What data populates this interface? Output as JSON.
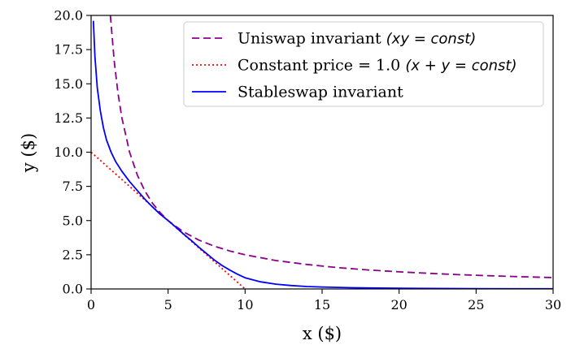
{
  "chart_data": {
    "type": "line",
    "xlabel": "x ($)",
    "ylabel": "y ($)",
    "xlim": [
      0,
      30
    ],
    "ylim": [
      0,
      20
    ],
    "xticks": [
      0,
      5,
      10,
      15,
      20,
      25,
      30
    ],
    "xtick_labels": [
      "0",
      "5",
      "10",
      "15",
      "20",
      "25",
      "30"
    ],
    "yticks": [
      0,
      2.5,
      5,
      7.5,
      10,
      12.5,
      15,
      17.5,
      20
    ],
    "ytick_labels": [
      "0.0",
      "2.5",
      "5.0",
      "7.5",
      "10.0",
      "12.5",
      "15.0",
      "17.5",
      "20.0"
    ],
    "grid": false,
    "legend_position": "top-right",
    "series": [
      {
        "name": "Uniswap invariant",
        "name_math": "(xy = const)",
        "style": "dashed",
        "color": "#8b008b",
        "x": [
          1.25,
          1.5,
          1.75,
          2,
          2.5,
          3,
          3.5,
          4,
          4.5,
          5,
          6,
          7,
          8,
          9,
          10,
          12,
          14,
          16,
          18,
          20,
          22,
          24,
          26,
          28,
          30
        ],
        "y": [
          20,
          16.67,
          14.29,
          12.5,
          10,
          8.33,
          7.14,
          6.25,
          5.56,
          5,
          4.17,
          3.57,
          3.13,
          2.78,
          2.5,
          2.08,
          1.79,
          1.56,
          1.39,
          1.25,
          1.14,
          1.04,
          0.96,
          0.89,
          0.83
        ]
      },
      {
        "name": "Constant price = 1.0",
        "name_math": "(x + y = const)",
        "style": "dotted",
        "color": "#ff0000",
        "x": [
          0,
          10
        ],
        "y": [
          10,
          0
        ]
      },
      {
        "name": "Stableswap invariant",
        "name_math": "",
        "style": "solid",
        "color": "#0000ff",
        "x": [
          0.15,
          0.25,
          0.4,
          0.6,
          0.8,
          1.0,
          1.3,
          1.6,
          2.0,
          2.5,
          3.0,
          3.5,
          4.0,
          4.5,
          5.0,
          5.5,
          6.0,
          6.5,
          7.0,
          7.5,
          8.0,
          8.5,
          9.0,
          9.5,
          10,
          11,
          12,
          13,
          14,
          15,
          17,
          20,
          25,
          30
        ],
        "y": [
          19.6,
          17.0,
          14.7,
          13.0,
          11.8,
          10.9,
          10.0,
          9.3,
          8.6,
          7.85,
          7.2,
          6.55,
          5.98,
          5.45,
          5.0,
          4.52,
          4.02,
          3.55,
          3.05,
          2.58,
          2.12,
          1.72,
          1.38,
          1.08,
          0.82,
          0.52,
          0.35,
          0.25,
          0.18,
          0.14,
          0.09,
          0.05,
          0.02,
          0.01
        ]
      }
    ]
  }
}
